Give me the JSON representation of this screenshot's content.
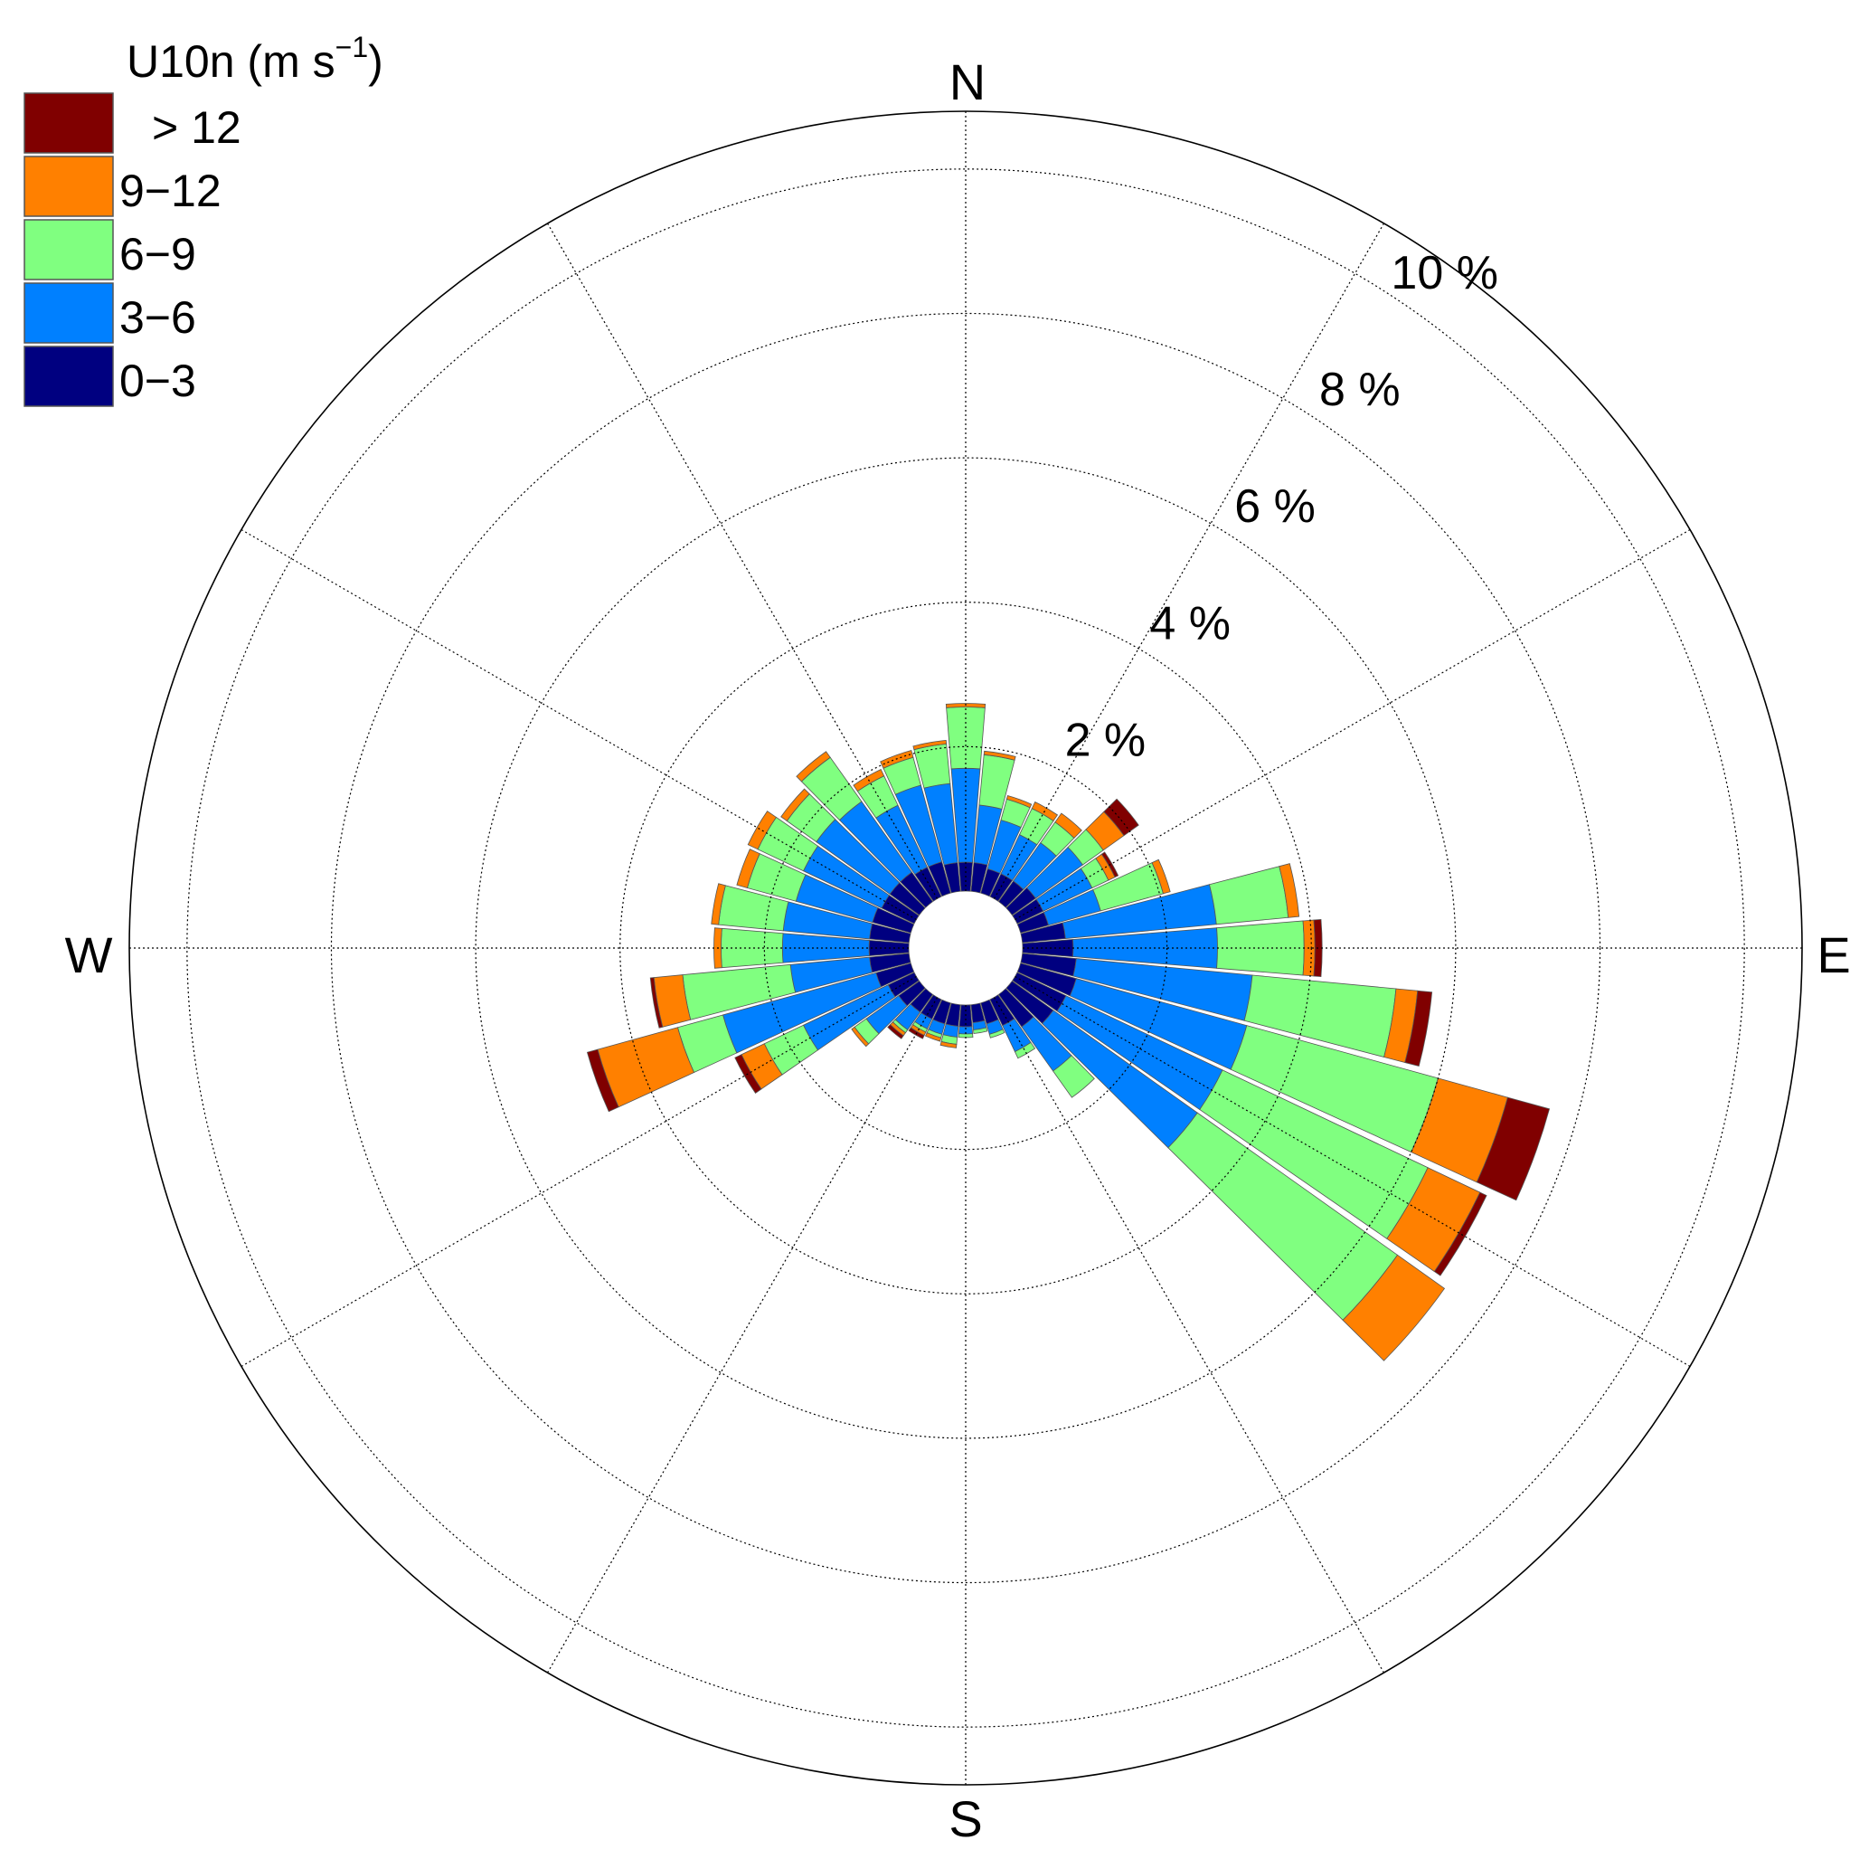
{
  "chart_data": {
    "type": "wind-rose",
    "legend_title": "U10n (m s",
    "legend_title_exp": "−1",
    "legend_title_close": ")",
    "legend_placement": "top-left",
    "bins": [
      {
        "label": "> 12",
        "color": "#800000"
      },
      {
        "label": "9−12",
        "color": "#ff8000"
      },
      {
        "label": "6−9",
        "color": "#80ff80"
      },
      {
        "label": "3−6",
        "color": "#0080ff"
      },
      {
        "label": "0−3",
        "color": "#000080"
      }
    ],
    "directions": {
      "north": "N",
      "east": "E",
      "south": "S",
      "west": "W"
    },
    "rings": [
      {
        "value": 2,
        "label": "2 %"
      },
      {
        "value": 4,
        "label": "4 %"
      },
      {
        "value": 6,
        "label": "6 %"
      },
      {
        "value": 8,
        "label": "8 %"
      },
      {
        "value": 10,
        "label": "10 %"
      }
    ],
    "r_max": 10.8,
    "sectors": [
      {
        "dir": 0,
        "v": [
          0.4,
          1.3,
          0.85,
          0.05,
          0.0
        ]
      },
      {
        "dir": 10,
        "v": [
          0.4,
          0.8,
          0.7,
          0.05,
          0.0
        ]
      },
      {
        "dir": 20,
        "v": [
          0.35,
          0.7,
          0.3,
          0.05,
          0.0
        ]
      },
      {
        "dir": 30,
        "v": [
          0.35,
          0.6,
          0.4,
          0.1,
          0.0
        ]
      },
      {
        "dir": 40,
        "v": [
          0.35,
          0.65,
          0.35,
          0.15,
          0.0
        ]
      },
      {
        "dir": 50,
        "v": [
          0.4,
          0.8,
          0.35,
          0.35,
          0.25
        ]
      },
      {
        "dir": 60,
        "v": [
          0.4,
          0.75,
          0.25,
          0.1,
          0.05
        ]
      },
      {
        "dir": 70,
        "v": [
          0.4,
          0.75,
          0.9,
          0.1,
          0.0
        ]
      },
      {
        "dir": 80,
        "v": [
          0.6,
          2.1,
          1.0,
          0.15,
          0.0
        ]
      },
      {
        "dir": 90,
        "v": [
          0.7,
          2.0,
          1.2,
          0.15,
          0.1
        ]
      },
      {
        "dir": 100,
        "v": [
          0.75,
          2.45,
          2.0,
          0.3,
          0.2
        ]
      },
      {
        "dir": 110,
        "v": [
          0.8,
          2.45,
          2.75,
          1.0,
          0.6
        ]
      },
      {
        "dir": 120,
        "v": [
          0.75,
          2.4,
          3.15,
          0.8,
          0.1
        ]
      },
      {
        "dir": 130,
        "v": [
          0.7,
          2.45,
          3.4,
          0.8,
          0.0
        ]
      },
      {
        "dir": 140,
        "v": [
          0.55,
          0.75,
          0.45,
          0.0,
          0.0
        ]
      },
      {
        "dir": 150,
        "v": [
          0.4,
          0.4,
          0.1,
          0.0,
          0.0
        ]
      },
      {
        "dir": 160,
        "v": [
          0.3,
          0.15,
          0.05,
          0.0,
          0.0
        ]
      },
      {
        "dir": 170,
        "v": [
          0.25,
          0.1,
          0.05,
          0.0,
          0.0
        ]
      },
      {
        "dir": 180,
        "v": [
          0.3,
          0.1,
          0.05,
          0.0,
          0.0
        ]
      },
      {
        "dir": 190,
        "v": [
          0.3,
          0.15,
          0.1,
          0.05,
          0.0
        ]
      },
      {
        "dir": 200,
        "v": [
          0.3,
          0.15,
          0.05,
          0.05,
          0.0
        ]
      },
      {
        "dir": 210,
        "v": [
          0.3,
          0.15,
          0.05,
          0.05,
          0.05
        ]
      },
      {
        "dir": 220,
        "v": [
          0.3,
          0.3,
          0.05,
          0.05,
          0.05
        ]
      },
      {
        "dir": 230,
        "v": [
          0.35,
          0.55,
          0.2,
          0.05,
          0.0
        ]
      },
      {
        "dir": 240,
        "v": [
          0.4,
          1.3,
          0.6,
          0.35,
          0.1
        ]
      },
      {
        "dir": 250,
        "v": [
          0.5,
          2.2,
          0.65,
          1.15,
          0.15
        ]
      },
      {
        "dir": 260,
        "v": [
          0.55,
          1.1,
          1.5,
          0.4,
          0.05
        ]
      },
      {
        "dir": 270,
        "v": [
          0.55,
          1.2,
          0.85,
          0.1,
          0.0
        ]
      },
      {
        "dir": 280,
        "v": [
          0.55,
          1.2,
          0.9,
          0.1,
          0.0
        ]
      },
      {
        "dir": 290,
        "v": [
          0.55,
          1.1,
          0.7,
          0.15,
          0.0
        ]
      },
      {
        "dir": 300,
        "v": [
          0.5,
          1.2,
          0.7,
          0.15,
          0.0
        ]
      },
      {
        "dir": 310,
        "v": [
          0.5,
          1.25,
          0.5,
          0.1,
          0.0
        ]
      },
      {
        "dir": 320,
        "v": [
          0.5,
          1.2,
          0.75,
          0.1,
          0.0
        ]
      },
      {
        "dir": 330,
        "v": [
          0.45,
          0.95,
          0.45,
          0.1,
          0.0
        ]
      },
      {
        "dir": 340,
        "v": [
          0.45,
          1.1,
          0.4,
          0.1,
          0.0
        ]
      },
      {
        "dir": 350,
        "v": [
          0.4,
          1.1,
          0.55,
          0.05,
          0.0
        ]
      }
    ]
  }
}
